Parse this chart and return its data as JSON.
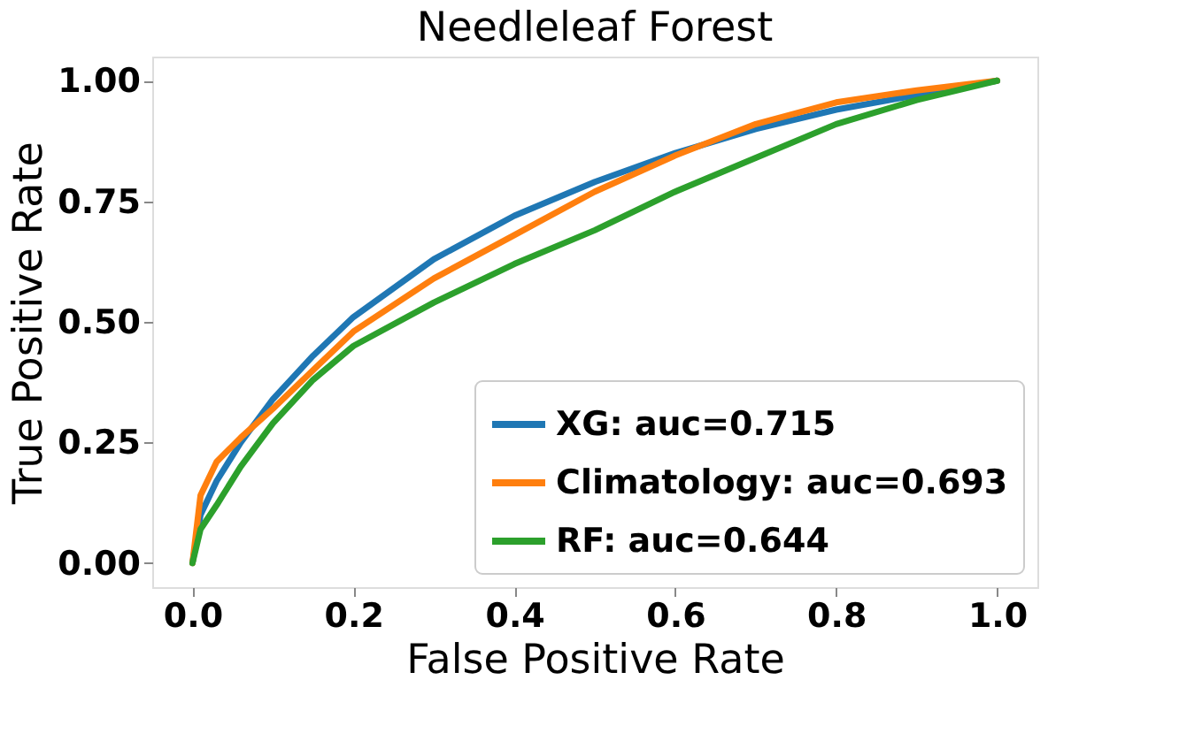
{
  "chart_data": {
    "type": "line",
    "title": "Needleleaf Forest",
    "xlabel": "False Positive Rate",
    "ylabel": "True Positive Rate",
    "xlim": [
      -0.05,
      1.05
    ],
    "ylim": [
      -0.05,
      1.05
    ],
    "xticks": [
      {
        "value": 0,
        "label": "0.0"
      },
      0.2,
      0.4,
      0.6,
      0.8,
      {
        "value": 1,
        "label": "1.0"
      }
    ],
    "yticks": [
      {
        "value": 0,
        "label": "0.00"
      },
      0.25,
      {
        "value": 0.5,
        "label": "0.50"
      },
      0.75,
      {
        "value": 1,
        "label": "1.00"
      }
    ],
    "x": [
      0,
      0.01,
      0.03,
      0.06,
      0.1,
      0.15,
      0.2,
      0.3,
      0.4,
      0.5,
      0.6,
      0.7,
      0.8,
      0.9,
      1.0
    ],
    "series": [
      {
        "name": "XG: auc=0.715",
        "color": "#1f77b4",
        "values": [
          0,
          0.1,
          0.17,
          0.25,
          0.34,
          0.43,
          0.51,
          0.63,
          0.72,
          0.79,
          0.85,
          0.9,
          0.94,
          0.97,
          1.0
        ]
      },
      {
        "name": "Climatology: auc=0.693",
        "color": "#ff7f0e",
        "values": [
          0,
          0.14,
          0.21,
          0.26,
          0.32,
          0.4,
          0.48,
          0.59,
          0.68,
          0.77,
          0.845,
          0.91,
          0.955,
          0.98,
          1.0
        ]
      },
      {
        "name": "RF: auc=0.644",
        "color": "#2ca02c",
        "values": [
          0,
          0.07,
          0.12,
          0.2,
          0.29,
          0.38,
          0.45,
          0.54,
          0.62,
          0.69,
          0.77,
          0.84,
          0.91,
          0.96,
          1.0
        ]
      }
    ],
    "legend": "bottom right",
    "grid": false
  }
}
